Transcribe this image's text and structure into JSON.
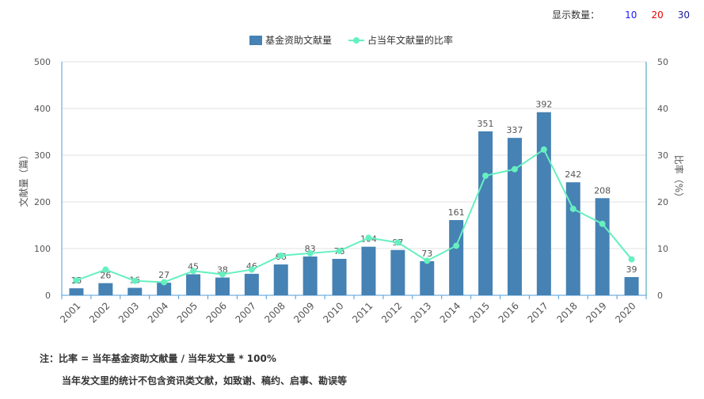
{
  "display_count": {
    "label": "显示数量：",
    "options": [
      {
        "text": "10",
        "color": "#1a1aff"
      },
      {
        "text": "20",
        "color": "#e60000"
      },
      {
        "text": "30",
        "color": "#1a1a99"
      }
    ]
  },
  "chart_data": {
    "type": "bar+line",
    "categories": [
      "2001",
      "2002",
      "2003",
      "2004",
      "2005",
      "2006",
      "2007",
      "2008",
      "2009",
      "2010",
      "2011",
      "2012",
      "2013",
      "2014",
      "2015",
      "2016",
      "2017",
      "2018",
      "2019",
      "2020"
    ],
    "series": [
      {
        "name": "基金资助文献量",
        "type": "bar",
        "axis": "left",
        "color": "#4682b4",
        "values": [
          15,
          26,
          16,
          27,
          45,
          38,
          46,
          66,
          83,
          78,
          104,
          97,
          73,
          161,
          351,
          337,
          392,
          242,
          208,
          39
        ]
      },
      {
        "name": "占当年文献量的比率",
        "type": "line",
        "axis": "right",
        "color": "#66f0c0",
        "values": [
          3.2,
          5.5,
          3.1,
          2.8,
          5.2,
          4.5,
          5.5,
          8.5,
          9.0,
          9.5,
          12.3,
          11.3,
          7.4,
          10.6,
          25.6,
          27.0,
          31.2,
          18.5,
          15.3,
          7.7
        ]
      }
    ],
    "ylabel_left": "文献量（篇）",
    "ylabel_right": "比率（%）",
    "ylim_left": [
      0,
      500
    ],
    "yticks_left": [
      0,
      100,
      200,
      300,
      400,
      500
    ],
    "ylim_right": [
      0,
      50
    ],
    "yticks_right": [
      0,
      10,
      20,
      30,
      40,
      50
    ],
    "grid": true,
    "legend_position": "top-center"
  },
  "notes": {
    "line1": "注：比率 = 当年基金资助文献量 / 当年发文量 * 100%",
    "line2": "当年发文里的统计不包含资讯类文献，如致谢、稿约、启事、勘误等"
  }
}
